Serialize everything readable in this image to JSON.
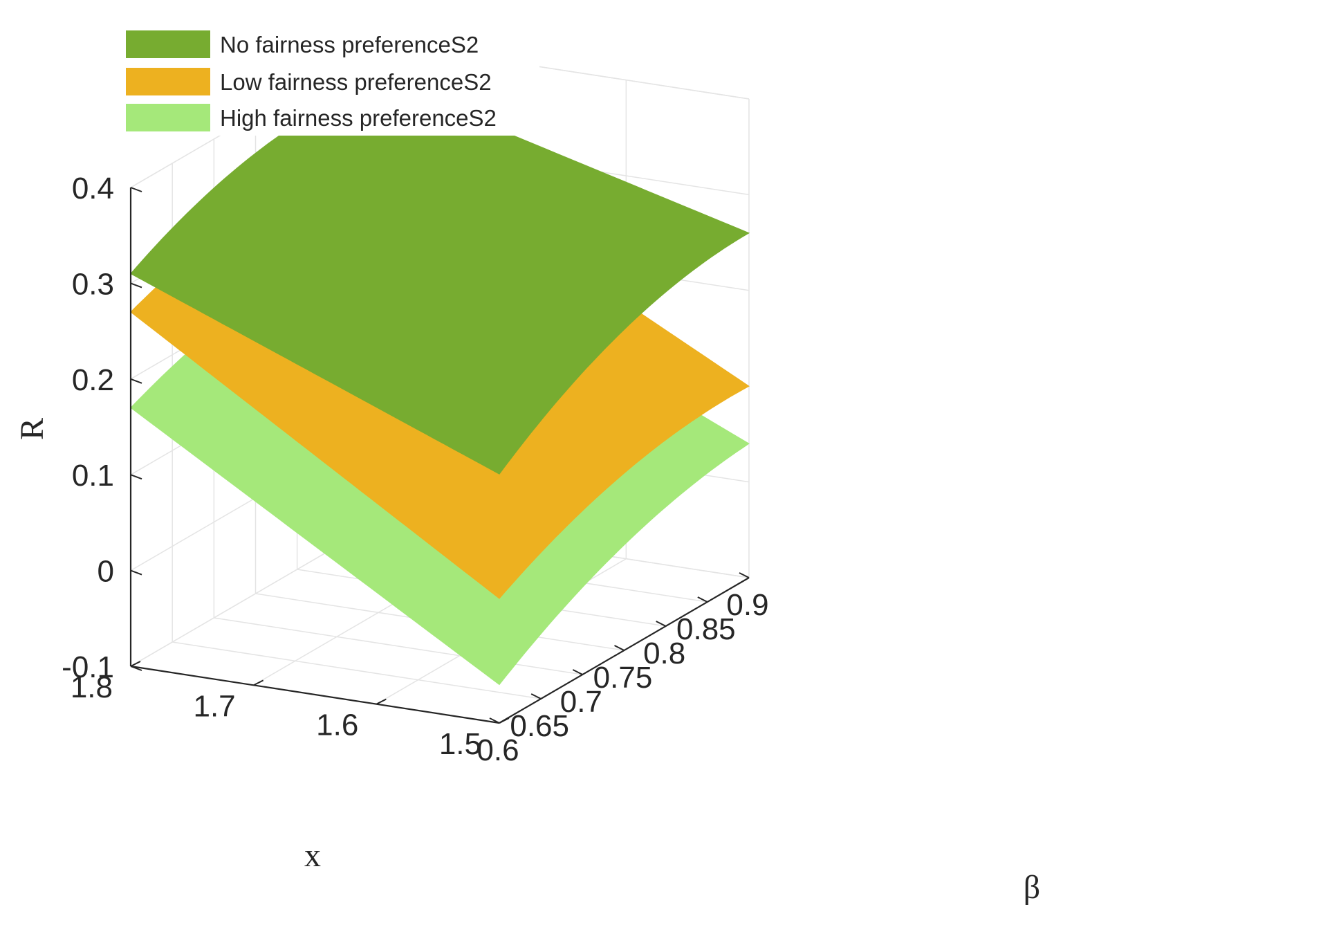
{
  "chart_data": {
    "type": "surface",
    "xlabel": "β",
    "ylabel": "x",
    "zlabel": "R",
    "beta_range": [
      0.6,
      0.9
    ],
    "x_range": [
      1.5,
      1.8
    ],
    "zlim": [
      -0.1,
      0.4
    ],
    "beta_ticks": [
      "0.6",
      "0.65",
      "0.7",
      "0.75",
      "0.8",
      "0.85",
      "0.9"
    ],
    "x_ticks": [
      "1.5",
      "1.6",
      "1.7",
      "1.8"
    ],
    "z_ticks": [
      "-0.1",
      "0",
      "0.1",
      "0.2",
      "0.3",
      "0.4"
    ],
    "grid": true,
    "legend_position": "top-left",
    "series": [
      {
        "name": "No fairness preferenceS2",
        "color": "#77ac30",
        "corners": {
          "beta0.6_x1.5": 0.16,
          "beta0.9_x1.5": 0.26,
          "beta0.6_x1.8": 0.31,
          "beta0.9_x1.8": 0.36
        },
        "bulge": 0.025
      },
      {
        "name": "Low fairness preferenceS2",
        "color": "#edb120",
        "corners": {
          "beta0.6_x1.5": 0.03,
          "beta0.9_x1.5": 0.1,
          "beta0.6_x1.8": 0.27,
          "beta0.9_x1.8": 0.3
        },
        "bulge": 0.02
      },
      {
        "name": "High fairness preferenceS2",
        "color": "#a5e87a",
        "corners": {
          "beta0.6_x1.5": -0.06,
          "beta0.9_x1.5": 0.04,
          "beta0.6_x1.8": 0.17,
          "beta0.9_x1.8": 0.21
        },
        "bulge": 0.02
      }
    ]
  }
}
